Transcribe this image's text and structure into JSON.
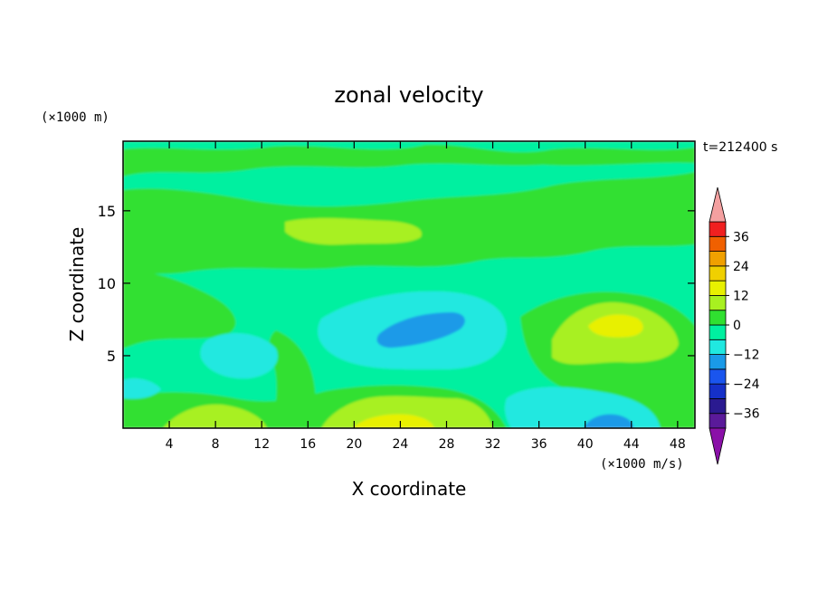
{
  "chart_data": {
    "type": "heatmap",
    "title": "zonal velocity",
    "xlabel": "X coordinate",
    "ylabel": "Z coordinate",
    "x_unit": "(×1000 m/s)",
    "y_unit": "(×1000 m)",
    "time_label": "t=212400 s",
    "xlim": [
      0,
      49.5
    ],
    "ylim": [
      0,
      19.8
    ],
    "x_ticks": [
      4,
      8,
      12,
      16,
      20,
      24,
      28,
      32,
      36,
      40,
      44,
      48
    ],
    "y_ticks": [
      5,
      10,
      15
    ],
    "colorbar": {
      "levels": [
        -42,
        -36,
        -30,
        -24,
        -18,
        -12,
        -6,
        0,
        6,
        12,
        18,
        24,
        30,
        36,
        42
      ],
      "tick_values": [
        36,
        24,
        12,
        0,
        -12,
        -24,
        -36
      ],
      "tick_labels": [
        "36",
        "24",
        "12",
        "0",
        "−12",
        "−24",
        "−36"
      ],
      "colors": [
        "#5a1a9a",
        "#2a1a90",
        "#1530c8",
        "#1a55ee",
        "#1a9ae8",
        "#20e8e0",
        "#00f0a0",
        "#30e030",
        "#a8f020",
        "#e8f000",
        "#f0d000",
        "#f0a000",
        "#f06000",
        "#f02020"
      ],
      "over_color": "#f4a0a0",
      "under_color": "#8a10a8",
      "extend": "both"
    },
    "field_description": "background ~ -6..0 (green-cyan), bands 0..6 aloft, minimum ~ -18 near x=26 z=6.5, maximum ~ +12 near x=43 z=7.5, positive near-surface band x=18-32, negative near-surface pocket x=42-45"
  }
}
